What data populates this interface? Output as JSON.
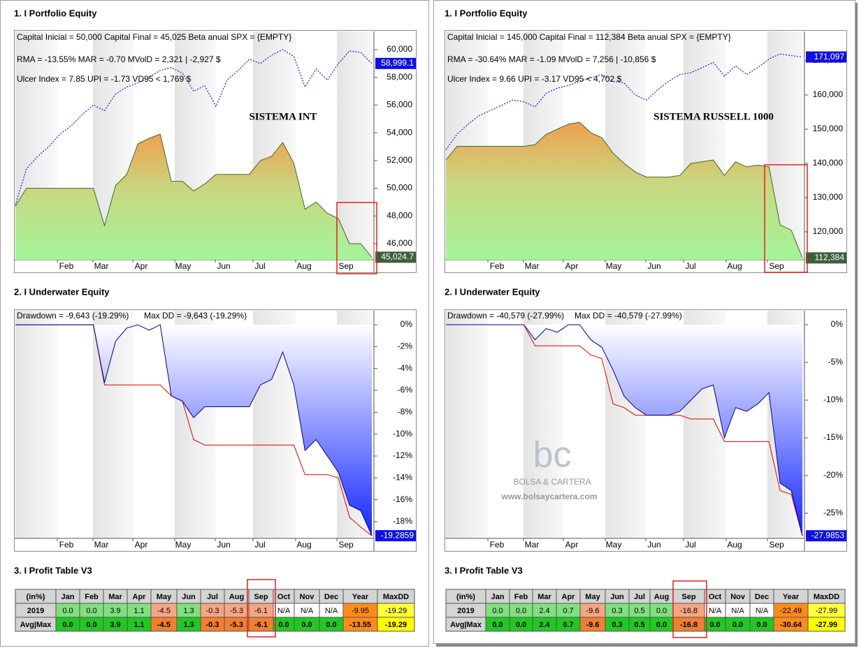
{
  "panels": [
    {
      "equity": {
        "title": "1. I Portfolio Equity",
        "type": "line",
        "info": [
          "Capital Inicial = 50,000  Capital Final = 45,025  Beta anual SPX = {EMPTY}",
          "RMA = -13.55%  MAR = -0.70  MVolD = 2,321 | -2,927 $",
          "Ulcer Index = 7.85  UPI = -1.73  VD95 < 1,769 $"
        ],
        "label": "SISTEMA INT",
        "months": [
          "Feb",
          "Mar",
          "Apr",
          "May",
          "Jun",
          "Jul",
          "Aug",
          "Sep"
        ],
        "ylim": [
          44842,
          61309
        ],
        "yticks": [
          {
            "value": 46000,
            "label": "46,000"
          },
          {
            "value": 48000,
            "label": "48,000"
          },
          {
            "value": 50000,
            "label": "50,000"
          },
          {
            "value": 52000,
            "label": "52,000"
          },
          {
            "value": 54000,
            "label": "54,000"
          },
          {
            "value": 56000,
            "label": "56,000"
          },
          {
            "value": 58000,
            "label": "58,000"
          },
          {
            "value": 60000,
            "label": "60,000"
          }
        ],
        "series": [
          {
            "color": "#1a1ad0",
            "style": "dotted",
            "values": [
              48800,
              51400,
              52300,
              53000,
              53900,
              54500,
              55300,
              56000,
              55600,
              56800,
              57300,
              57600,
              58000,
              58500,
              58700,
              58300,
              57000,
              57400,
              55900,
              57800,
              58500,
              59300,
              59000,
              59600,
              60000,
              59500,
              57300,
              58600,
              57800,
              59000,
              59900,
              59800,
              58999.1
            ],
            "end_label": "58,999.1"
          },
          {
            "color": "#3f6a2a",
            "style": "area",
            "values": [
              48700,
              50000,
              50000,
              50000,
              50000,
              50000,
              50000,
              50000,
              47300,
              50200,
              51000,
              53200,
              53600,
              53900,
              50500,
              50500,
              49800,
              50300,
              51000,
              51000,
              51000,
              51000,
              52000,
              52300,
              53300,
              51800,
              48500,
              49000,
              48200,
              47800,
              46000,
              46000,
              45024.7
            ],
            "end_label": "45,024.7"
          }
        ]
      },
      "underwater": {
        "title": "2. I Underwater Equity",
        "type": "area",
        "info": [
          "Drawdown = -9,643 (-19.29%)",
          "Max DD = -9,643 (-19.29%)"
        ],
        "months": [
          "Feb",
          "Mar",
          "Apr",
          "May",
          "Jun",
          "Jul",
          "Aug",
          "Sep"
        ],
        "ylim": [
          -19.53,
          1.28
        ],
        "yticks": [
          {
            "value": 0,
            "label": "0%"
          },
          {
            "value": -2,
            "label": "-2%"
          },
          {
            "value": -4,
            "label": "-4%"
          },
          {
            "value": -6,
            "label": "-6%"
          },
          {
            "value": -8,
            "label": "-8%"
          },
          {
            "value": -10,
            "label": "-10%"
          },
          {
            "value": -12,
            "label": "-12%"
          },
          {
            "value": -14,
            "label": "-14%"
          },
          {
            "value": -16,
            "label": "-16%"
          },
          {
            "value": -18,
            "label": "-18%"
          }
        ],
        "series": [
          {
            "color": "#00008b",
            "values": [
              0,
              0,
              0,
              0,
              0,
              0,
              0,
              0,
              -5.3,
              -1.5,
              -0.3,
              0,
              -0.5,
              0,
              -6.5,
              -7,
              -8.5,
              -7.5,
              -7.5,
              -7.5,
              -7.5,
              -7.5,
              -5.5,
              -5,
              -2.5,
              -5.5,
              -11.5,
              -10.5,
              -12,
              -13.5,
              -16.5,
              -17,
              -19.2859
            ]
          },
          {
            "color": "#e00000",
            "values": [
              0,
              0,
              0,
              0,
              0,
              0,
              0,
              0,
              -5.5,
              -5.5,
              -5.5,
              -5.5,
              -5.5,
              -5.5,
              -6.5,
              -7,
              -10.5,
              -11,
              -11,
              -11,
              -11,
              -11,
              -11,
              -11,
              -11,
              -11,
              -13.7,
              -13.7,
              -13.7,
              -14,
              -17.6,
              -18.5,
              -19.29
            ]
          }
        ]
      },
      "table": {
        "title": "3. I Profit Table V3",
        "header": [
          "(in%)",
          "Jan",
          "Feb",
          "Mar",
          "Apr",
          "May",
          "Jun",
          "Jul",
          "Aug",
          "Sep",
          "Oct",
          "Nov",
          "Dec",
          "Year",
          "MaxDD"
        ],
        "rows": [
          [
            "2019",
            "0.0",
            "0.0",
            "3.9",
            "1.1",
            "-4.5",
            "1.3",
            "-0.3",
            "-5.3",
            "-6.1",
            "N/A",
            "N/A",
            "N/A",
            "-9.95",
            "-19.29"
          ],
          [
            "Avg|Max",
            "0.0",
            "0.0",
            "3.9",
            "1.1",
            "-4.5",
            "1.3",
            "-0.3",
            "-5.3",
            "-6.1",
            "0.0",
            "0.0",
            "0.0",
            "-13.55",
            "-19.29"
          ]
        ]
      }
    },
    {
      "equity": {
        "title": "1. I Portfolio Equity",
        "type": "line",
        "info": [
          "Capital Inicial = 145,000  Capital Final = 112,384  Beta anual SPX = {EMPTY}",
          "RMA = -30.64%  MAR = -1.09  MVolD = 7,256 | -10,856 $",
          "Ulcer Index = 9.66  UPI = -3.17  VD95 < 4,702 $"
        ],
        "label": "SISTEMA RUSSELL 1000",
        "months": [
          "Feb",
          "Mar",
          "Apr",
          "May",
          "Jun",
          "Jul",
          "Aug",
          "Sep"
        ],
        "ylim": [
          111840,
          178570
        ],
        "yticks": [
          {
            "value": 120000,
            "label": "120,000"
          },
          {
            "value": 130000,
            "label": "130,000"
          },
          {
            "value": 140000,
            "label": "140,000"
          },
          {
            "value": 150000,
            "label": "150,000"
          },
          {
            "value": 160000,
            "label": "160,000"
          },
          {
            "value": 170000,
            "label": "170,000"
          }
        ],
        "series": [
          {
            "color": "#1a1ad0",
            "style": "dotted",
            "values": [
              144000,
              148500,
              151500,
              154000,
              155500,
              157000,
              158500,
              158000,
              156500,
              160500,
              162000,
              162800,
              164000,
              165000,
              166000,
              164000,
              163500,
              160000,
              158500,
              161500,
              164000,
              166000,
              166500,
              168000,
              169500,
              165500,
              168500,
              166000,
              168000,
              170500,
              172000,
              171500,
              171097
            ],
            "end_label": "171,097"
          },
          {
            "color": "#3f6a2a",
            "style": "area",
            "values": [
              141000,
              145000,
              145000,
              145000,
              145000,
              145000,
              145000,
              145000,
              145500,
              148500,
              150000,
              151500,
              152000,
              149000,
              147500,
              143000,
              140000,
              137500,
              136000,
              136000,
              136000,
              136500,
              140000,
              140500,
              141000,
              136500,
              140500,
              139000,
              139500,
              139000,
              122000,
              120500,
              112384
            ],
            "end_label": "112,384"
          }
        ]
      },
      "underwater": {
        "title": "2. I Underwater Equity",
        "type": "area",
        "info": [
          "Drawdown = -40,579 (-27.99%)",
          "Max DD = -40,579 (-27.99%)"
        ],
        "months": [
          "Feb",
          "Mar",
          "Apr",
          "May",
          "Jun",
          "Jul",
          "Aug",
          "Sep"
        ],
        "ylim": [
          -28.33,
          1.85
        ],
        "yticks": [
          {
            "value": 0,
            "label": "0%"
          },
          {
            "value": -5,
            "label": "-5%"
          },
          {
            "value": -10,
            "label": "-10%"
          },
          {
            "value": -15,
            "label": "-15%"
          },
          {
            "value": -20,
            "label": "-20%"
          },
          {
            "value": -25,
            "label": "-25%"
          }
        ],
        "series": [
          {
            "color": "#00008b",
            "values": [
              0,
              0,
              0,
              0,
              0,
              0,
              0,
              0,
              -2,
              -0.5,
              -1,
              0,
              0,
              -2,
              -3,
              -6,
              -9.5,
              -11,
              -12,
              -12,
              -12,
              -11.5,
              -10,
              -8.5,
              -8,
              -15,
              -11,
              -11.5,
              -10.5,
              -9,
              -21,
              -22,
              -27.9853
            ]
          },
          {
            "color": "#e00000",
            "values": [
              0,
              0,
              0,
              0,
              0,
              0,
              0,
              0,
              -2.8,
              -2.8,
              -2.8,
              -2.8,
              -2.8,
              -4,
              -4.5,
              -10.5,
              -11,
              -12,
              -12,
              -12,
              -12,
              -12,
              -12.5,
              -12.5,
              -12.5,
              -15.5,
              -15.5,
              -15.5,
              -15.5,
              -15.5,
              -22,
              -22.5,
              -27.99
            ]
          }
        ]
      },
      "table": {
        "title": "3. I Profit Table V3",
        "header": [
          "(in%)",
          "Jan",
          "Feb",
          "Mar",
          "Apr",
          "May",
          "Jun",
          "Jul",
          "Aug",
          "Sep",
          "Oct",
          "Nov",
          "Dec",
          "Year",
          "MaxDD"
        ],
        "rows": [
          [
            "2019",
            "0.0",
            "0.0",
            "2.4",
            "0.7",
            "-9.6",
            "0.3",
            "0.5",
            "0.0",
            "-16.8",
            "N/A",
            "N/A",
            "N/A",
            "-22.49",
            "-27.99"
          ],
          [
            "Avg|Max",
            "0.0",
            "0.0",
            "2.4",
            "0.7",
            "-9.6",
            "0.3",
            "0.5",
            "0.0",
            "-16.8",
            "0.0",
            "0.0",
            "0.0",
            "-30.64",
            "-27.99"
          ]
        ]
      }
    }
  ],
  "watermark": {
    "logo": "bc",
    "name": "BOLSA & CARTERA",
    "url": "www.bolsaycartera.com"
  }
}
